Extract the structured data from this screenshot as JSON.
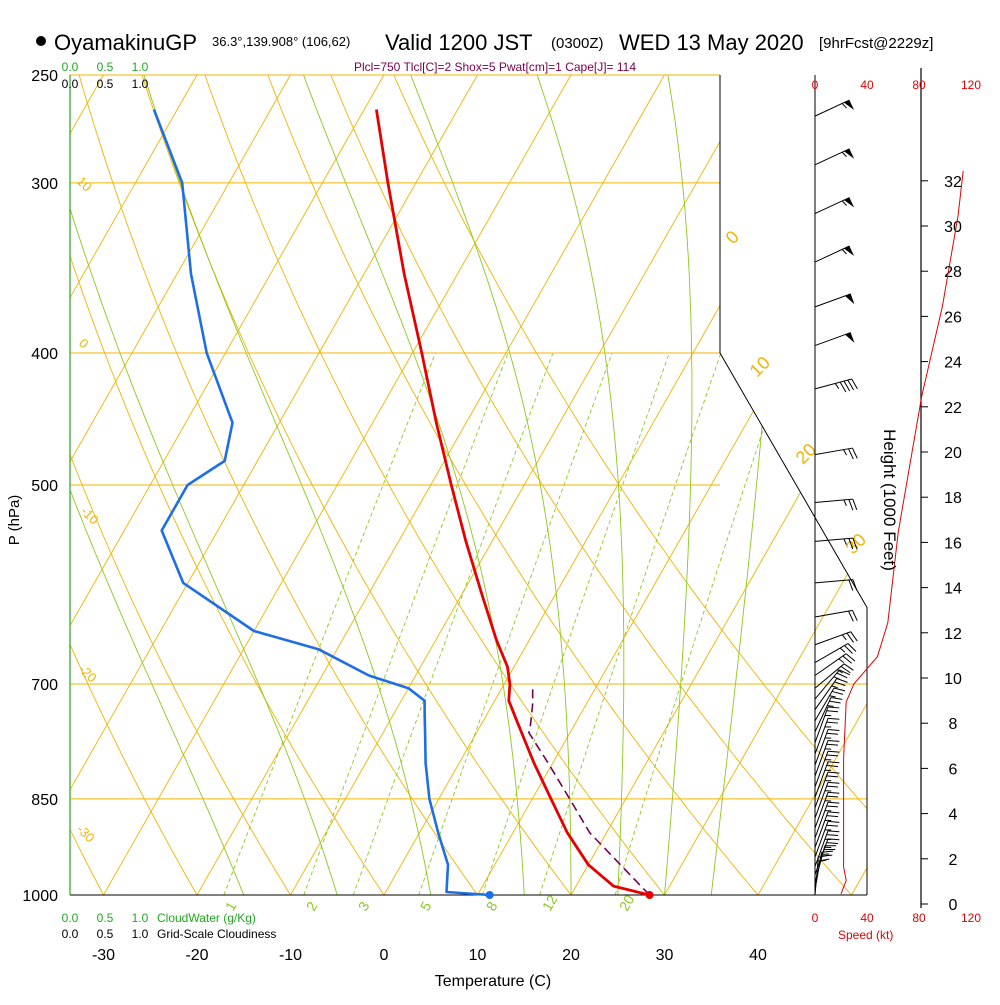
{
  "header": {
    "station": "OyamakinuGP",
    "location": "36.3°,139.908° (106,62)",
    "valid": "Valid 1200 JST",
    "zulu": "(0300Z)",
    "date": "WED 13 May 2020",
    "forecast": "[9hrFcst@2229z]",
    "indices": "Plcl=750 Tlcl[C]=2 Shox=5 Pwat[cm]=1 Cape[J]= 114"
  },
  "colors": {
    "isobar": "#f0b400",
    "isotherm": "#f0b400",
    "dry_adiabat": "#f0b400",
    "moist_adiabat": "#8cc81e",
    "mixing_ratio": "#8cc81e",
    "temperature": "#e60000",
    "dewpoint": "#1e6ee6",
    "parcel": "#780050",
    "cloud": "#1eaa1e",
    "speed": "#e60000"
  },
  "scales": {
    "cloudwater_ticks": [
      "0.0",
      "0.5",
      "1.0"
    ],
    "cloudiness_ticks": [
      "0.0",
      "0.5",
      "1.0"
    ],
    "cloudwater_label": "CloudWater (g/Kg)",
    "cloudiness_label": "Grid-Scale Cloudiness",
    "speed_ticks": [
      "0",
      "40",
      "80",
      "120"
    ],
    "speed_label": "Speed (kt)"
  },
  "chart_data": {
    "type": "skew-t",
    "xlabel": "Temperature (C)",
    "ylabel": "P (hPa)",
    "y2label": "Height (1000 Feet)",
    "pressure_ticks": [
      250,
      300,
      400,
      500,
      700,
      850,
      1000
    ],
    "temp_ticks": [
      -30,
      -20,
      -10,
      0,
      10,
      20,
      30,
      40
    ],
    "height_ticks": [
      0,
      2,
      4,
      6,
      8,
      10,
      12,
      14,
      16,
      18,
      20,
      22,
      24,
      26,
      28,
      30,
      32
    ],
    "dry_adiabat_labels": [
      "10",
      "0",
      "-10",
      "-20",
      "-30",
      "0",
      "10",
      "20",
      "30"
    ],
    "mixing_ratio_labels": [
      "1",
      "2",
      "3",
      "5",
      "8",
      "12",
      "20"
    ],
    "temperature": [
      {
        "p": 1000,
        "t": 28.4
      },
      {
        "p": 985,
        "t": 24.0
      },
      {
        "p": 950,
        "t": 20.0
      },
      {
        "p": 900,
        "t": 15.8
      },
      {
        "p": 850,
        "t": 12.0
      },
      {
        "p": 800,
        "t": 8.0
      },
      {
        "p": 750,
        "t": 4.0
      },
      {
        "p": 720,
        "t": 1.5
      },
      {
        "p": 700,
        "t": 0.6
      },
      {
        "p": 680,
        "t": -0.7
      },
      {
        "p": 650,
        "t": -3.5
      },
      {
        "p": 600,
        "t": -8.0
      },
      {
        "p": 550,
        "t": -12.8
      },
      {
        "p": 500,
        "t": -17.8
      },
      {
        "p": 450,
        "t": -23.2
      },
      {
        "p": 400,
        "t": -29.0
      },
      {
        "p": 350,
        "t": -35.7
      },
      {
        "p": 300,
        "t": -43.0
      },
      {
        "p": 265,
        "t": -48.7
      }
    ],
    "dewpoint": [
      {
        "p": 1000,
        "t": 11.3
      },
      {
        "p": 995,
        "t": 6.5
      },
      {
        "p": 950,
        "t": 5.0
      },
      {
        "p": 900,
        "t": 2.0
      },
      {
        "p": 850,
        "t": -1.0
      },
      {
        "p": 800,
        "t": -3.6
      },
      {
        "p": 760,
        "t": -5.5
      },
      {
        "p": 740,
        "t": -6.5
      },
      {
        "p": 720,
        "t": -7.5
      },
      {
        "p": 705,
        "t": -10.0
      },
      {
        "p": 690,
        "t": -15.0
      },
      {
        "p": 660,
        "t": -22.0
      },
      {
        "p": 640,
        "t": -30.0
      },
      {
        "p": 590,
        "t": -40.5
      },
      {
        "p": 540,
        "t": -46.0
      },
      {
        "p": 500,
        "t": -46.0
      },
      {
        "p": 480,
        "t": -43.5
      },
      {
        "p": 450,
        "t": -45.0
      },
      {
        "p": 400,
        "t": -52.0
      },
      {
        "p": 350,
        "t": -58.5
      },
      {
        "p": 300,
        "t": -65.0
      },
      {
        "p": 265,
        "t": -72.5
      }
    ],
    "parcel": [
      {
        "p": 1000,
        "t": 28.4
      },
      {
        "p": 900,
        "t": 18.2
      },
      {
        "p": 850,
        "t": 14.0
      },
      {
        "p": 800,
        "t": 9.5
      },
      {
        "p": 760,
        "t": 5.6
      },
      {
        "p": 750,
        "t": 5.3
      },
      {
        "p": 725,
        "t": 4.3
      },
      {
        "p": 705,
        "t": 3.3
      }
    ],
    "speed_profile": [
      {
        "h": 0,
        "s": 20
      },
      {
        "h": 0.6,
        "s": 24
      },
      {
        "h": 1.2,
        "s": 22
      },
      {
        "h": 3,
        "s": 22
      },
      {
        "h": 6,
        "s": 22
      },
      {
        "h": 8.5,
        "s": 24
      },
      {
        "h": 9.3,
        "s": 30
      },
      {
        "h": 10.5,
        "s": 48
      },
      {
        "h": 12,
        "s": 56
      },
      {
        "h": 14,
        "s": 60
      },
      {
        "h": 16,
        "s": 64
      },
      {
        "h": 18,
        "s": 70
      },
      {
        "h": 20,
        "s": 76
      },
      {
        "h": 22,
        "s": 82
      },
      {
        "h": 24,
        "s": 90
      },
      {
        "h": 26,
        "s": 98
      },
      {
        "h": 28,
        "s": 104
      },
      {
        "h": 30,
        "s": 110
      },
      {
        "h": 32,
        "s": 114
      }
    ],
    "wind_barbs": [
      {
        "p": 268,
        "dir": 245,
        "kt": 55
      },
      {
        "p": 291,
        "dir": 245,
        "kt": 55
      },
      {
        "p": 316,
        "dir": 245,
        "kt": 55
      },
      {
        "p": 343,
        "dir": 245,
        "kt": 55
      },
      {
        "p": 370,
        "dir": 250,
        "kt": 50
      },
      {
        "p": 395,
        "dir": 250,
        "kt": 50
      },
      {
        "p": 425,
        "dir": 255,
        "kt": 45
      },
      {
        "p": 475,
        "dir": 260,
        "kt": 25
      },
      {
        "p": 515,
        "dir": 265,
        "kt": 25
      },
      {
        "p": 550,
        "dir": 265,
        "kt": 25
      },
      {
        "p": 590,
        "dir": 265,
        "kt": 20
      },
      {
        "p": 625,
        "dir": 260,
        "kt": 20
      },
      {
        "p": 655,
        "dir": 250,
        "kt": 25
      },
      {
        "p": 675,
        "dir": 240,
        "kt": 25
      },
      {
        "p": 690,
        "dir": 235,
        "kt": 25
      },
      {
        "p": 705,
        "dir": 230,
        "kt": 25
      },
      {
        "p": 718,
        "dir": 220,
        "kt": 25
      },
      {
        "p": 731,
        "dir": 215,
        "kt": 25
      },
      {
        "p": 745,
        "dir": 210,
        "kt": 25
      },
      {
        "p": 759,
        "dir": 205,
        "kt": 25
      },
      {
        "p": 773,
        "dir": 200,
        "kt": 25
      },
      {
        "p": 788,
        "dir": 200,
        "kt": 25
      },
      {
        "p": 803,
        "dir": 200,
        "kt": 25
      },
      {
        "p": 818,
        "dir": 200,
        "kt": 25
      },
      {
        "p": 833,
        "dir": 200,
        "kt": 25
      },
      {
        "p": 848,
        "dir": 200,
        "kt": 25
      },
      {
        "p": 863,
        "dir": 200,
        "kt": 25
      },
      {
        "p": 878,
        "dir": 200,
        "kt": 25
      },
      {
        "p": 893,
        "dir": 200,
        "kt": 25
      },
      {
        "p": 908,
        "dir": 200,
        "kt": 25
      },
      {
        "p": 923,
        "dir": 200,
        "kt": 25
      },
      {
        "p": 938,
        "dir": 200,
        "kt": 25
      },
      {
        "p": 953,
        "dir": 200,
        "kt": 25
      },
      {
        "p": 966,
        "dir": 200,
        "kt": 25
      },
      {
        "p": 979,
        "dir": 195,
        "kt": 25
      },
      {
        "p": 991,
        "dir": 190,
        "kt": 25
      },
      {
        "p": 1000,
        "dir": 185,
        "kt": 20
      }
    ],
    "surface_temperature": 28.4,
    "surface_dewpoint": 11.3
  }
}
